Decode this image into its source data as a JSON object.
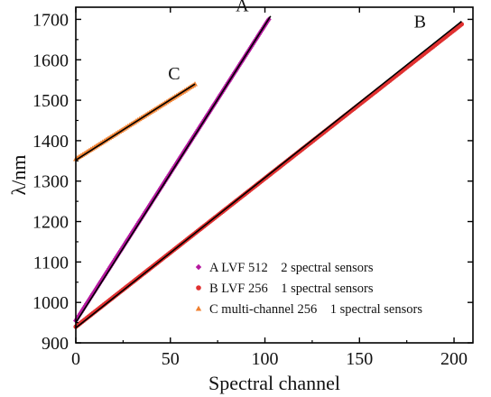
{
  "chart_data": {
    "type": "line",
    "xlabel": "Spectral channel",
    "ylabel": "λ/nm",
    "xlim": [
      0,
      210
    ],
    "ylim": [
      900,
      1730
    ],
    "x_ticks": [
      0,
      50,
      100,
      150,
      200
    ],
    "y_ticks": [
      900,
      1000,
      1100,
      1200,
      1300,
      1400,
      1500,
      1600,
      1700
    ],
    "grid": false,
    "legend_position": "bottom-right",
    "series": [
      {
        "name": "A LVF 512    2 spectral sensors",
        "label": "A",
        "marker": "diamond",
        "color": "#b5179e",
        "x": [
          0,
          102
        ],
        "y": [
          955,
          1700
        ],
        "fit_x": [
          0,
          103
        ],
        "fit_y": [
          950,
          1708
        ]
      },
      {
        "name": "B LVF 256    1 spectral sensors",
        "label": "B",
        "marker": "circle",
        "color": "#e03030",
        "x": [
          0,
          204
        ],
        "y": [
          940,
          1688
        ],
        "fit_x": [
          0,
          204
        ],
        "fit_y": [
          937,
          1695
        ]
      },
      {
        "name": "C multi-channel 256    1 spectral sensors",
        "label": "C",
        "marker": "triangle",
        "color": "#f08030",
        "x": [
          0,
          63
        ],
        "y": [
          1355,
          1540
        ],
        "fit_x": [
          0,
          63
        ],
        "fit_y": [
          1352,
          1540
        ]
      }
    ],
    "annotations": [
      {
        "text": "A",
        "x": 88,
        "y": 1720
      },
      {
        "text": "B",
        "x": 182,
        "y": 1680
      },
      {
        "text": "C",
        "x": 52,
        "y": 1552
      }
    ]
  },
  "colors": {
    "fit_line": "#000000",
    "axis": "#000000"
  }
}
